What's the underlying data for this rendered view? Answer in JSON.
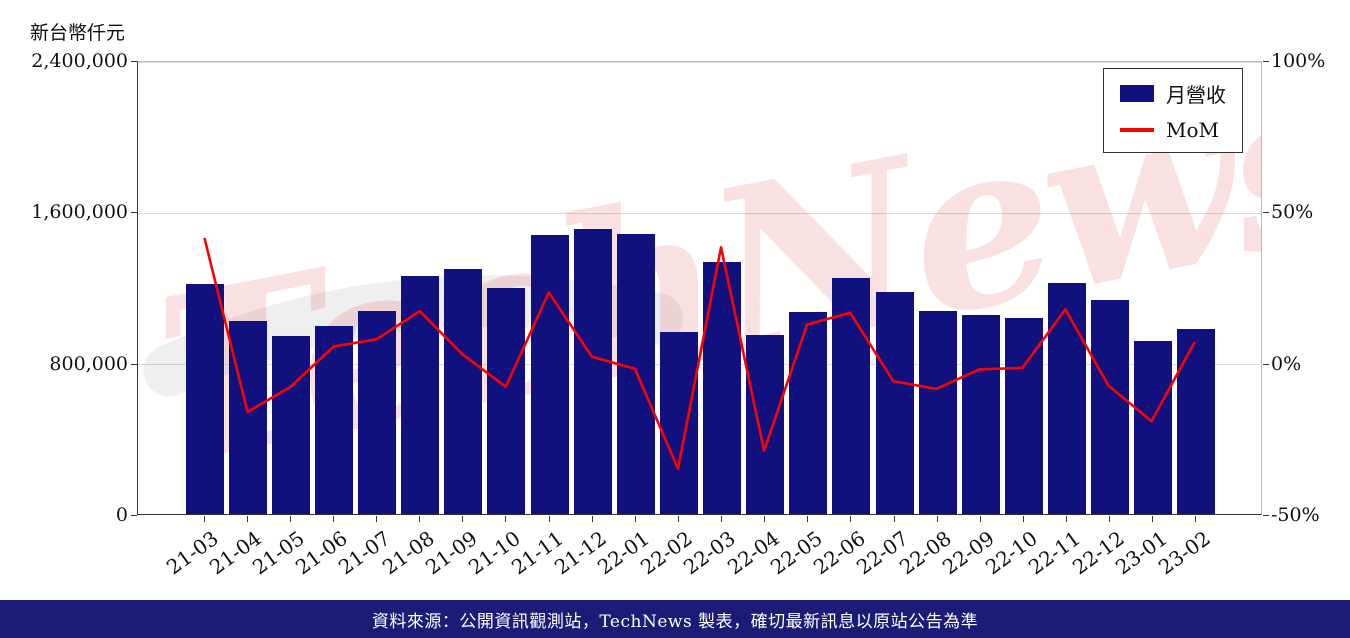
{
  "page": {
    "y_axis_title": "新台幣仟元",
    "watermark": "TechNews",
    "footer": "資料來源：公開資訊觀測站，TechNews 製表，確切最新訊息以原站公告為準"
  },
  "legend": {
    "bar_label": "月營收",
    "line_label": "MoM"
  },
  "colors": {
    "bar": "#10107e",
    "line": "#ff0000",
    "footer_bg": "#1c1c77",
    "watermark": "rgba(225,75,75,0.17)",
    "gridline": "#dcdcdc"
  },
  "chart_data": {
    "type": "bar",
    "title": "",
    "categories": [
      "21-03",
      "21-04",
      "21-05",
      "21-06",
      "21-07",
      "21-08",
      "21-09",
      "21-10",
      "21-11",
      "21-12",
      "22-01",
      "22-02",
      "22-03",
      "22-04",
      "22-05",
      "22-06",
      "22-07",
      "22-08",
      "22-09",
      "22-10",
      "22-11",
      "22-12",
      "23-01",
      "23-02"
    ],
    "series": [
      {
        "name": "月營收",
        "type": "bar",
        "axis": "left",
        "values": [
          1214000,
          1019000,
          940000,
          993000,
          1072000,
          1257000,
          1294000,
          1193000,
          1473000,
          1505000,
          1478000,
          961000,
          1331000,
          945000,
          1067000,
          1246000,
          1172000,
          1072000,
          1051000,
          1035000,
          1220000,
          1130000,
          913000,
          977000
        ]
      },
      {
        "name": "MoM",
        "type": "line",
        "axis": "right",
        "values": [
          41.6,
          -16.1,
          -7.8,
          5.6,
          8.0,
          17.3,
          2.9,
          -7.8,
          23.5,
          2.2,
          -1.8,
          -35.0,
          38.5,
          -29.0,
          12.9,
          16.8,
          -5.9,
          -8.5,
          -2.0,
          -1.5,
          17.9,
          -7.4,
          -19.2,
          7.0
        ]
      }
    ],
    "left_axis": {
      "label": "新台幣仟元",
      "range": [
        0,
        2400000
      ],
      "ticks": [
        0,
        800000,
        1600000,
        2400000
      ],
      "tick_labels": [
        "0",
        "800,000",
        "1,600,000",
        "2,400,000"
      ]
    },
    "right_axis": {
      "label": "",
      "range": [
        -50,
        100
      ],
      "ticks": [
        -50,
        0,
        50,
        100
      ],
      "tick_labels": [
        "-50%",
        "0%",
        "50%",
        "100%"
      ]
    },
    "grid": true,
    "legend_position": "upper right"
  }
}
